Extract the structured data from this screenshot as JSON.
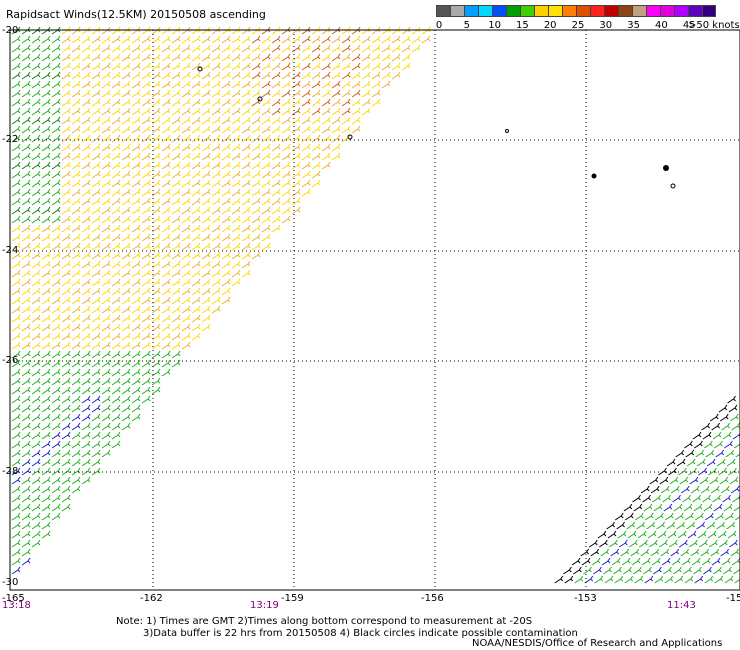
{
  "title": "Rapidsact Winds(12.5KM) 20150508 ascending",
  "legend": {
    "colors": [
      "#555555",
      "#aaaaaa",
      "#00a0ff",
      "#00d8ff",
      "#0050ff",
      "#00a000",
      "#40d000",
      "#ffd000",
      "#ffe000",
      "#ff8000",
      "#e05000",
      "#ff2020",
      "#c00000",
      "#8b4513",
      "#c0a080",
      "#ff00ff",
      "#e000e0",
      "#b000ff",
      "#6000c0",
      "#300080"
    ],
    "labels": [
      "0",
      "5",
      "10",
      "15",
      "20",
      "25",
      "30",
      "35",
      "40",
      "45"
    ],
    "max_label": ">50",
    "unit": "knots"
  },
  "map": {
    "lon_labels": [
      "-165",
      "-162",
      "-159",
      "-156",
      "-153",
      "-15"
    ],
    "lat_labels": [
      "-20",
      "-22",
      "-24",
      "-26",
      "-28",
      "-30"
    ],
    "times": {
      "left": "13:18",
      "mid": "13:19",
      "right": "11:43"
    }
  },
  "notes": [
    "Note: 1) Times are GMT 2)Times along bottom correspond to measurement at -20S",
    "3)Data buffer is 22 hrs from 20150508 4) Black circles indicate possible contamination"
  ],
  "credit": "NOAA/NESDIS/Office of Research and Applications",
  "swath_colors": {
    "yellow": "#ffd700",
    "orange": "#f0b030",
    "dark_orange": "#d06010",
    "green": "#20b020",
    "dark_green": "#108010",
    "blue": "#2020d0",
    "black": "#000000"
  }
}
